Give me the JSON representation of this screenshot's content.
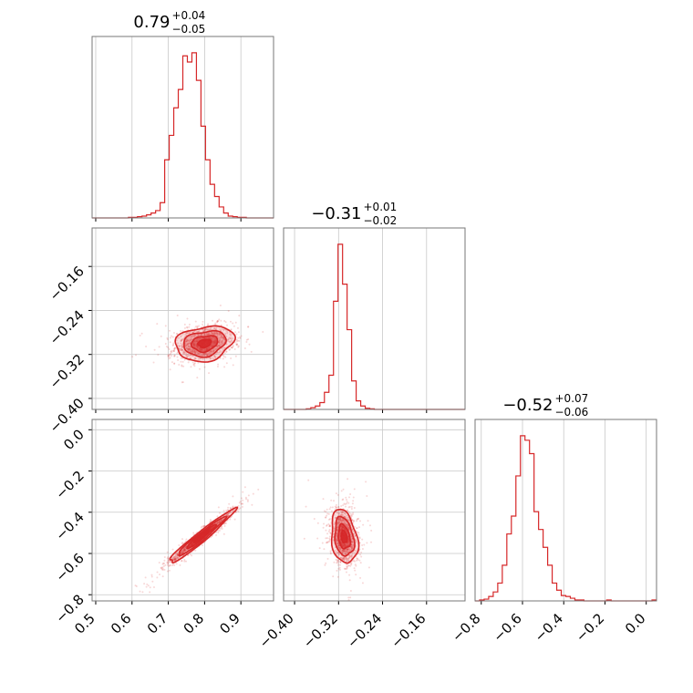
{
  "chart_data": {
    "type": "corner",
    "color": "#d62728",
    "parameters": [
      {
        "median": "0.79",
        "plus": "+0.04",
        "minus": "−0.05",
        "range": [
          0.49,
          0.99
        ],
        "ticks": [
          0.5,
          0.6,
          0.7,
          0.8,
          0.9
        ],
        "tick_labels": [
          "0.5",
          "0.6",
          "0.7",
          "0.8",
          "0.9"
        ],
        "hist": {
          "bin_start": 0.49,
          "bin_width": 0.0125,
          "counts": [
            0,
            0,
            0,
            0,
            0,
            0,
            0,
            0,
            1,
            1,
            2,
            3,
            5,
            8,
            12,
            25,
            95,
            135,
            180,
            210,
            265,
            255,
            270,
            225,
            150,
            95,
            55,
            35,
            18,
            8,
            3,
            2,
            1,
            1,
            0,
            0,
            0,
            0,
            0,
            0
          ]
        }
      },
      {
        "median": "−0.31",
        "plus": "+0.01",
        "minus": "−0.02",
        "range": [
          -0.42,
          -0.09
        ],
        "ticks": [
          -0.4,
          -0.32,
          -0.24,
          -0.16
        ],
        "tick_labels": [
          "−0.40",
          "−0.32",
          "−0.24",
          "−0.16"
        ],
        "hist": {
          "bin_start": -0.42,
          "bin_width": 0.00825,
          "counts": [
            0,
            0,
            0,
            0,
            0,
            1,
            3,
            6,
            12,
            30,
            60,
            190,
            290,
            220,
            140,
            50,
            15,
            6,
            2,
            1,
            0,
            0,
            0,
            0,
            0,
            0,
            0,
            0,
            0,
            0,
            0,
            0,
            0,
            0,
            0,
            0,
            0,
            0,
            0,
            0
          ]
        }
      },
      {
        "median": "−0.52",
        "plus": "+0.07",
        "minus": "−0.06",
        "range": [
          -0.83,
          0.05
        ],
        "ticks": [
          -0.8,
          -0.6,
          -0.4,
          -0.2,
          0.0
        ],
        "tick_labels": [
          "−0.8",
          "−0.6",
          "−0.4",
          "−0.2",
          "0.0"
        ],
        "hist": {
          "bin_start": -0.83,
          "bin_width": 0.022,
          "counts": [
            0,
            1,
            2,
            5,
            10,
            20,
            40,
            75,
            95,
            140,
            185,
            180,
            165,
            100,
            80,
            60,
            40,
            20,
            12,
            6,
            5,
            3,
            1,
            1,
            0,
            0,
            0,
            0,
            0,
            1,
            0,
            0,
            0,
            0,
            0,
            0,
            0,
            0,
            0,
            1
          ]
        }
      }
    ],
    "pairs": [
      {
        "x_param": 0,
        "y_param": 1,
        "center": [
          0.8,
          -0.3
        ],
        "spread": [
          0.04,
          0.016
        ],
        "corr": 0.2
      },
      {
        "x_param": 0,
        "y_param": 2,
        "center": [
          0.79,
          -0.52
        ],
        "spread": [
          0.045,
          0.065
        ],
        "corr": 0.97
      },
      {
        "x_param": 1,
        "y_param": 2,
        "center": [
          -0.31,
          -0.52
        ],
        "spread": [
          0.012,
          0.065
        ],
        "corr": -0.25
      }
    ],
    "grid": true
  }
}
